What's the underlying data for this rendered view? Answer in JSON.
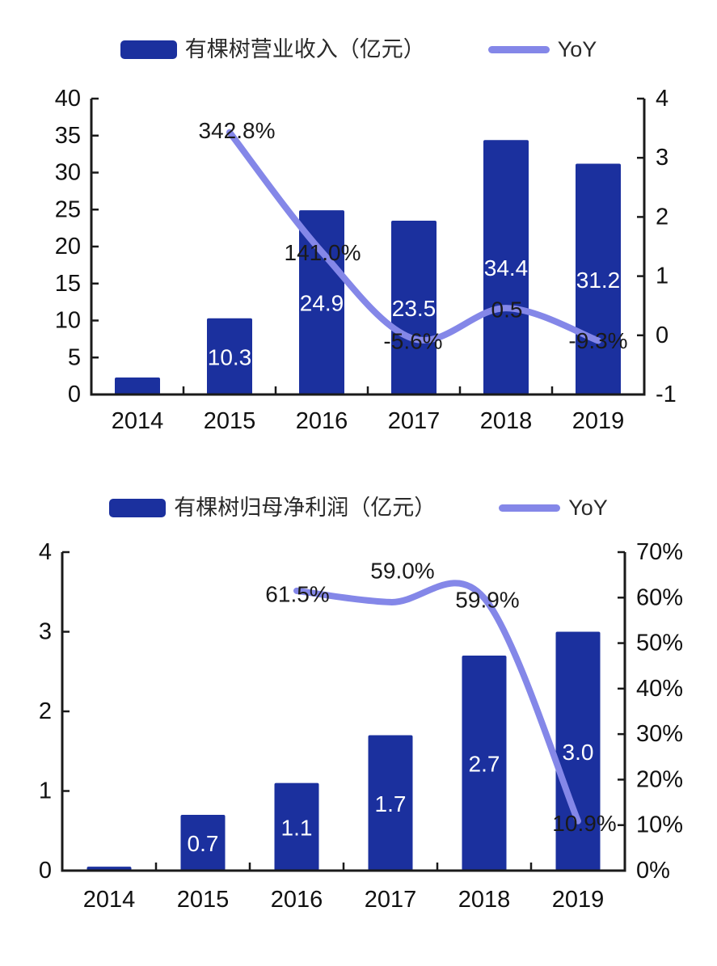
{
  "page": {
    "background": "#ffffff"
  },
  "charts": [
    {
      "legend": {
        "bar_label": "有棵树营业收入（亿元）",
        "line_label": "YoY"
      },
      "colors": {
        "bar": "#1b309e",
        "line": "#8487e8",
        "axis": "#1a1a1a",
        "bar_label_text": "#ffffff",
        "line_label_text": "#1a1a1a",
        "axis_label_text": "#111111"
      },
      "chart_data": {
        "type": "bar+line combo",
        "title": "有棵树营业收入（亿元）与YoY",
        "categories": [
          "2014",
          "2015",
          "2016",
          "2017",
          "2018",
          "2019"
        ],
        "series": [
          {
            "name": "有棵树营业收入（亿元）",
            "type": "bar",
            "axis": "left",
            "values": [
              2.3,
              10.3,
              24.9,
              23.5,
              34.4,
              31.2
            ],
            "data_labels": [
              null,
              "10.3",
              "24.9",
              "23.5",
              "34.4",
              "31.2"
            ]
          },
          {
            "name": "YoY",
            "type": "line",
            "axis": "right",
            "values": [
              null,
              3.43,
              1.41,
              -0.06,
              0.46,
              -0.09
            ],
            "data_labels": [
              null,
              "342.8%",
              "141.0%",
              "-5.6%",
              "0.5",
              "-9.3%"
            ]
          }
        ],
        "left_axis": {
          "min": 0,
          "max": 40,
          "ticks": [
            "0",
            "5",
            "10",
            "15",
            "20",
            "25",
            "30",
            "35",
            "40"
          ]
        },
        "right_axis": {
          "min": -1,
          "max": 4,
          "ticks": [
            "-1",
            "0",
            "1",
            "2",
            "3",
            "4"
          ]
        },
        "grid": false,
        "legend_position": "top"
      }
    },
    {
      "legend": {
        "bar_label": "有棵树归母净利润（亿元）",
        "line_label": "YoY"
      },
      "colors": {
        "bar": "#1b309e",
        "line": "#8487e8",
        "axis": "#1a1a1a",
        "bar_label_text": "#ffffff",
        "line_label_text": "#1a1a1a",
        "axis_label_text": "#111111"
      },
      "chart_data": {
        "type": "bar+line combo",
        "title": "有棵树归母净利润（亿元）与YoY",
        "categories": [
          "2014",
          "2015",
          "2016",
          "2017",
          "2018",
          "2019"
        ],
        "series": [
          {
            "name": "有棵树归母净利润（亿元）",
            "type": "bar",
            "axis": "left",
            "values": [
              0.05,
              0.7,
              1.1,
              1.7,
              2.7,
              3.0
            ],
            "data_labels": [
              null,
              "0.7",
              "1.1",
              "1.7",
              "2.7",
              "3.0"
            ]
          },
          {
            "name": "YoY",
            "type": "line",
            "axis": "right",
            "values": [
              null,
              null,
              61.5,
              59.0,
              59.9,
              10.9
            ],
            "data_labels": [
              null,
              null,
              "61.5%",
              "59.0%",
              "59.9%",
              "10.9%"
            ]
          }
        ],
        "left_axis": {
          "min": 0,
          "max": 4,
          "ticks": [
            "0",
            "1",
            "2",
            "3",
            "4"
          ]
        },
        "right_axis": {
          "min": 0,
          "max": 70,
          "ticks": [
            "0%",
            "10%",
            "20%",
            "30%",
            "40%",
            "50%",
            "60%",
            "70%"
          ]
        },
        "grid": false,
        "legend_position": "top"
      }
    }
  ]
}
